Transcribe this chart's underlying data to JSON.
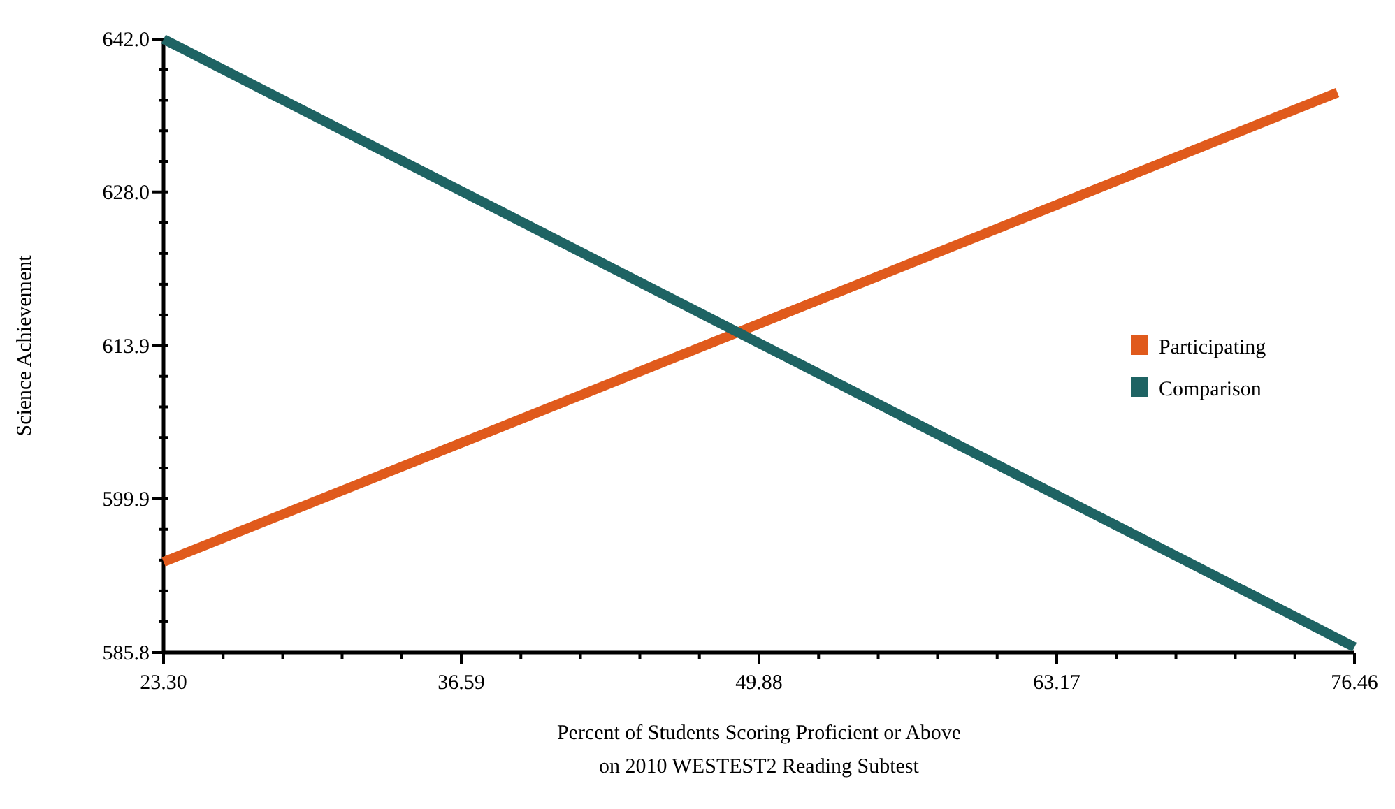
{
  "chart_data": {
    "type": "line",
    "xlabel": "Percent of Students Scoring Proficient or Above\non 2010 WESTEST2 Reading Subtest",
    "ylabel": "Science Achievement",
    "xlim": [
      23.3,
      76.46
    ],
    "ylim": [
      585.8,
      642.0
    ],
    "xticks": [
      {
        "value": 23.3,
        "label": "23.30"
      },
      {
        "value": 25.96,
        "label": null
      },
      {
        "value": 28.62,
        "label": null
      },
      {
        "value": 31.27,
        "label": null
      },
      {
        "value": 33.93,
        "label": null
      },
      {
        "value": 36.59,
        "label": "36.59"
      },
      {
        "value": 39.25,
        "label": null
      },
      {
        "value": 41.91,
        "label": null
      },
      {
        "value": 44.56,
        "label": null
      },
      {
        "value": 47.22,
        "label": null
      },
      {
        "value": 49.88,
        "label": "49.88"
      },
      {
        "value": 52.54,
        "label": null
      },
      {
        "value": 55.2,
        "label": null
      },
      {
        "value": 57.85,
        "label": null
      },
      {
        "value": 60.51,
        "label": null
      },
      {
        "value": 63.17,
        "label": "63.17"
      },
      {
        "value": 65.83,
        "label": null
      },
      {
        "value": 68.49,
        "label": null
      },
      {
        "value": 71.14,
        "label": null
      },
      {
        "value": 73.8,
        "label": null
      },
      {
        "value": 76.46,
        "label": "76.46"
      }
    ],
    "yticks": [
      {
        "value": 585.8,
        "label": "585.8"
      },
      {
        "value": 588.62,
        "label": null
      },
      {
        "value": 591.44,
        "label": null
      },
      {
        "value": 594.26,
        "label": null
      },
      {
        "value": 597.08,
        "label": null
      },
      {
        "value": 599.9,
        "label": "599.9"
      },
      {
        "value": 602.7,
        "label": null
      },
      {
        "value": 605.5,
        "label": null
      },
      {
        "value": 608.3,
        "label": null
      },
      {
        "value": 611.1,
        "label": null
      },
      {
        "value": 613.9,
        "label": "613.9"
      },
      {
        "value": 616.72,
        "label": null
      },
      {
        "value": 619.54,
        "label": null
      },
      {
        "value": 622.36,
        "label": null
      },
      {
        "value": 625.18,
        "label": null
      },
      {
        "value": 628.0,
        "label": "628.0"
      },
      {
        "value": 630.8,
        "label": null
      },
      {
        "value": 633.6,
        "label": null
      },
      {
        "value": 636.4,
        "label": null
      },
      {
        "value": 639.2,
        "label": null
      },
      {
        "value": 642.0,
        "label": "642.0"
      }
    ],
    "grid": false,
    "legend": "right",
    "marker": "none",
    "line_style": "solid",
    "series": [
      {
        "name": "Participating",
        "color": "#e05a1c",
        "x": [
          23.3,
          75.7
        ],
        "values": [
          594.1,
          637.1
        ]
      },
      {
        "name": "Comparison",
        "color": "#1e6363",
        "x": [
          23.3,
          76.46
        ],
        "values": [
          642.0,
          586.3
        ]
      }
    ]
  }
}
